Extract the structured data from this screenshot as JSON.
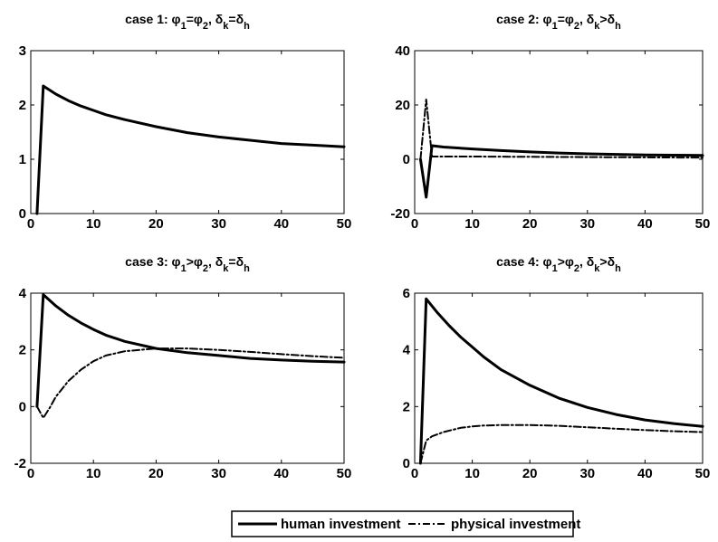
{
  "legend": {
    "items": [
      {
        "label": "human investment",
        "style": "solid"
      },
      {
        "label": "physical investment",
        "style": "dashdot"
      }
    ]
  },
  "chart_data": [
    {
      "type": "line",
      "title": {
        "prefix": "case 1:",
        "phi": "φ₁=φ₂",
        "delta": "δk=δh",
        "parts": [
          {
            "t": "case 1:  φ"
          },
          {
            "t": "1",
            "sub": true
          },
          {
            "t": "=φ"
          },
          {
            "t": "2",
            "sub": true
          },
          {
            "t": ", δ"
          },
          {
            "t": "k",
            "sub": true
          },
          {
            "t": "=δ"
          },
          {
            "t": "h",
            "sub": true
          }
        ]
      },
      "xlim": [
        0,
        50
      ],
      "ylim": [
        0,
        3
      ],
      "xticks": [
        "0",
        "10",
        "20",
        "30",
        "40",
        "50"
      ],
      "yticks": [
        "0",
        "1",
        "2",
        "3"
      ],
      "series": [
        {
          "name": "human investment",
          "style": "solid",
          "x": [
            1,
            2,
            4,
            6,
            8,
            10,
            12,
            15,
            20,
            25,
            30,
            35,
            40,
            45,
            50
          ],
          "y": [
            0,
            2.35,
            2.2,
            2.08,
            1.98,
            1.9,
            1.82,
            1.73,
            1.6,
            1.49,
            1.41,
            1.35,
            1.29,
            1.26,
            1.23
          ]
        },
        {
          "name": "physical investment",
          "style": "dashdot",
          "x": [
            1,
            2,
            4,
            6,
            8,
            10,
            12,
            15,
            20,
            25,
            30,
            35,
            40,
            45,
            50
          ],
          "y": [
            0,
            2.35,
            2.2,
            2.08,
            1.98,
            1.9,
            1.82,
            1.73,
            1.6,
            1.49,
            1.41,
            1.35,
            1.29,
            1.26,
            1.23
          ]
        }
      ]
    },
    {
      "type": "line",
      "title": {
        "parts": [
          {
            "t": "case 2:  φ"
          },
          {
            "t": "1",
            "sub": true
          },
          {
            "t": "=φ"
          },
          {
            "t": "2",
            "sub": true
          },
          {
            "t": ", δ"
          },
          {
            "t": "k",
            "sub": true
          },
          {
            "t": ">δ"
          },
          {
            "t": "h",
            "sub": true
          }
        ]
      },
      "xlim": [
        0,
        50
      ],
      "ylim": [
        -20,
        40
      ],
      "xticks": [
        "0",
        "10",
        "20",
        "30",
        "40",
        "50"
      ],
      "yticks": [
        "-20",
        "0",
        "20",
        "40"
      ],
      "series": [
        {
          "name": "human investment",
          "style": "solid",
          "x": [
            1,
            2,
            3,
            5,
            10,
            15,
            20,
            25,
            30,
            35,
            40,
            45,
            50
          ],
          "y": [
            0,
            -14,
            5,
            4.5,
            3.8,
            3.2,
            2.7,
            2.3,
            2.0,
            1.8,
            1.6,
            1.5,
            1.4
          ]
        },
        {
          "name": "physical investment",
          "style": "dashdot",
          "x": [
            1,
            2,
            3,
            10,
            20,
            30,
            40,
            50
          ],
          "y": [
            0,
            22,
            1,
            1,
            0.9,
            0.8,
            0.7,
            0.6
          ]
        }
      ]
    },
    {
      "type": "line",
      "title": {
        "parts": [
          {
            "t": "case 3:  φ"
          },
          {
            "t": "1",
            "sub": true
          },
          {
            "t": ">φ"
          },
          {
            "t": "2",
            "sub": true
          },
          {
            "t": ", δ"
          },
          {
            "t": "k",
            "sub": true
          },
          {
            "t": "=δ"
          },
          {
            "t": "h",
            "sub": true
          }
        ]
      },
      "xlim": [
        0,
        50
      ],
      "ylim": [
        -2,
        4
      ],
      "xticks": [
        "0",
        "10",
        "20",
        "30",
        "40",
        "50"
      ],
      "yticks": [
        "-2",
        "0",
        "2",
        "4"
      ],
      "series": [
        {
          "name": "human investment",
          "style": "solid",
          "x": [
            1,
            2,
            4,
            6,
            8,
            10,
            12,
            15,
            20,
            25,
            30,
            35,
            40,
            45,
            50
          ],
          "y": [
            0,
            3.95,
            3.55,
            3.22,
            2.95,
            2.72,
            2.52,
            2.3,
            2.05,
            1.9,
            1.8,
            1.7,
            1.64,
            1.6,
            1.57
          ]
        },
        {
          "name": "physical investment",
          "style": "dashdot",
          "x": [
            1,
            2,
            3,
            4,
            6,
            8,
            10,
            12,
            15,
            20,
            25,
            30,
            35,
            40,
            45,
            50
          ],
          "y": [
            0,
            -0.4,
            -0.05,
            0.35,
            0.9,
            1.3,
            1.6,
            1.8,
            1.95,
            2.05,
            2.05,
            2.0,
            1.93,
            1.85,
            1.78,
            1.72
          ]
        }
      ]
    },
    {
      "type": "line",
      "title": {
        "parts": [
          {
            "t": "case 4:  φ"
          },
          {
            "t": "1",
            "sub": true
          },
          {
            "t": ">φ"
          },
          {
            "t": "2",
            "sub": true
          },
          {
            "t": ", δ"
          },
          {
            "t": "k",
            "sub": true
          },
          {
            "t": ">δ"
          },
          {
            "t": "h",
            "sub": true
          }
        ]
      },
      "xlim": [
        0,
        50
      ],
      "ylim": [
        0,
        6
      ],
      "xticks": [
        "0",
        "10",
        "20",
        "30",
        "40",
        "50"
      ],
      "yticks": [
        "0",
        "2",
        "4",
        "6"
      ],
      "series": [
        {
          "name": "human investment",
          "style": "solid",
          "x": [
            1,
            2,
            4,
            6,
            8,
            10,
            12,
            15,
            20,
            25,
            30,
            35,
            40,
            45,
            50
          ],
          "y": [
            0,
            5.8,
            5.3,
            4.85,
            4.45,
            4.1,
            3.75,
            3.3,
            2.75,
            2.3,
            1.97,
            1.72,
            1.53,
            1.4,
            1.3
          ]
        },
        {
          "name": "physical investment",
          "style": "dashdot",
          "x": [
            1,
            2,
            3,
            5,
            8,
            10,
            12,
            15,
            20,
            25,
            30,
            35,
            40,
            45,
            50
          ],
          "y": [
            0,
            0.8,
            0.95,
            1.1,
            1.25,
            1.3,
            1.33,
            1.35,
            1.35,
            1.32,
            1.27,
            1.22,
            1.17,
            1.13,
            1.1
          ]
        }
      ]
    }
  ]
}
